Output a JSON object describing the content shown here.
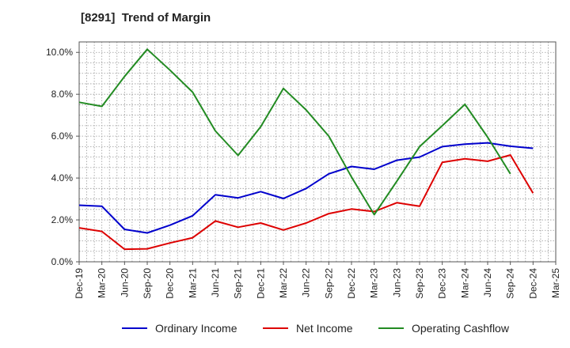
{
  "chart_data": {
    "type": "line",
    "title": "[8291]  Trend of Margin",
    "x": [
      "Dec-19",
      "Mar-20",
      "Jun-20",
      "Sep-20",
      "Dec-20",
      "Mar-21",
      "Jun-21",
      "Sep-21",
      "Dec-21",
      "Mar-22",
      "Jun-22",
      "Sep-22",
      "Dec-22",
      "Mar-23",
      "Jun-23",
      "Sep-23",
      "Dec-23",
      "Mar-24",
      "Jun-24",
      "Sep-24",
      "Dec-24",
      "Mar-25"
    ],
    "yticks": [
      "0.0%",
      "2.0%",
      "4.0%",
      "6.0%",
      "8.0%",
      "10.0%"
    ],
    "ylim": [
      0,
      10.5
    ],
    "grid": true,
    "legend_position": "bottom",
    "series": [
      {
        "name": "Ordinary Income",
        "color": "#0000cc",
        "values": [
          2.7,
          2.65,
          1.55,
          1.38,
          1.75,
          2.2,
          3.2,
          3.05,
          3.35,
          3.02,
          3.5,
          4.2,
          4.55,
          4.42,
          4.85,
          5.0,
          5.5,
          5.62,
          5.68,
          5.52,
          5.42,
          null
        ]
      },
      {
        "name": "Net Income",
        "color": "#dd0000",
        "values": [
          1.62,
          1.45,
          0.6,
          0.62,
          0.9,
          1.15,
          1.95,
          1.65,
          1.85,
          1.52,
          1.85,
          2.3,
          2.52,
          2.4,
          2.82,
          2.65,
          4.75,
          4.92,
          4.8,
          5.1,
          3.28,
          null
        ]
      },
      {
        "name": "Operating Cashflow",
        "color": "#228b22",
        "values": [
          7.62,
          7.42,
          8.85,
          10.15,
          9.15,
          8.1,
          6.25,
          5.08,
          6.45,
          8.28,
          7.25,
          6.0,
          4.05,
          2.25,
          3.85,
          5.5,
          6.5,
          7.52,
          5.95,
          4.2,
          null,
          null
        ]
      }
    ]
  }
}
